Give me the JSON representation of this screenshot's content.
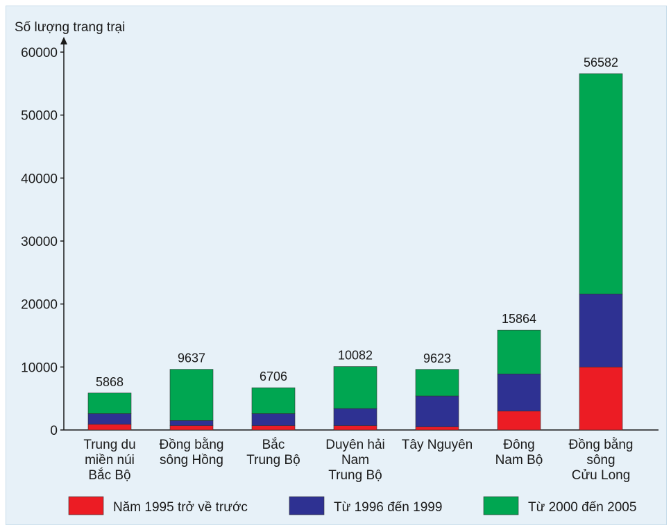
{
  "chart_data": {
    "type": "bar",
    "stacked": true,
    "ylabel": "Số lượng trang trại",
    "ylim": [
      0,
      60000
    ],
    "yticks": [
      0,
      10000,
      20000,
      30000,
      40000,
      50000,
      60000
    ],
    "ytick_labels": [
      "0",
      "10000",
      "20000",
      "30000",
      "40000",
      "50000",
      "60000"
    ],
    "categories": [
      [
        "Trung du",
        "miền núi",
        "Bắc Bộ"
      ],
      [
        "Đồng bằng",
        "sông Hồng"
      ],
      [
        "Bắc",
        "Trung Bộ"
      ],
      [
        "Duyên hải",
        "Nam",
        "Trung Bộ"
      ],
      [
        "Tây Nguyên"
      ],
      [
        "Đông",
        "Nam Bộ"
      ],
      [
        "Đồng bằng",
        "sông",
        "Cửu Long"
      ]
    ],
    "series": [
      {
        "name": "Năm 1995 trở về trước",
        "color": "#ec1c24",
        "values": [
          900,
          700,
          700,
          700,
          500,
          3000,
          10000
        ]
      },
      {
        "name": "Từ 1996 đến 1999",
        "color": "#2e3192",
        "values": [
          1700,
          800,
          1900,
          2700,
          4900,
          5900,
          11600
        ]
      },
      {
        "name": "Từ 2000 đến 2005",
        "color": "#00a651",
        "values": [
          3268,
          8137,
          4106,
          6682,
          4223,
          6964,
          34982
        ]
      }
    ],
    "totals": [
      5868,
      9637,
      6706,
      10082,
      9623,
      15864,
      56582
    ],
    "total_labels": [
      "5868",
      "9637",
      "6706",
      "10082",
      "9623",
      "15864",
      "56582"
    ],
    "legend_position": "bottom",
    "grid": false
  }
}
